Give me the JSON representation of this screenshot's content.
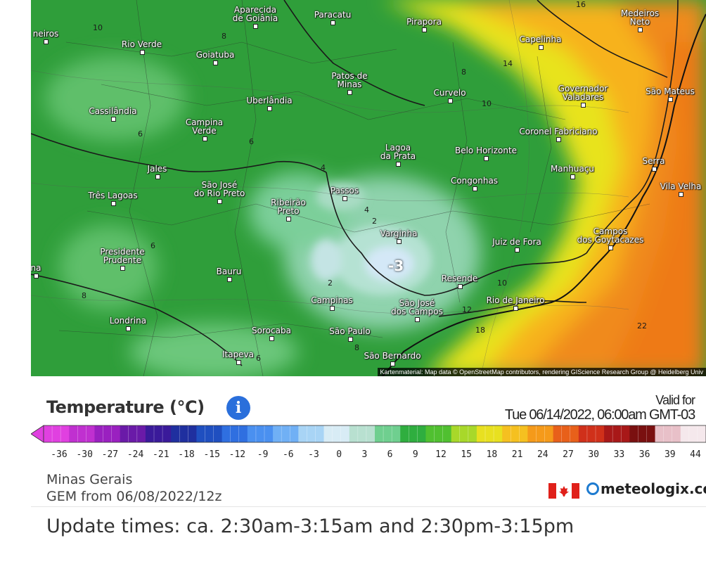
{
  "map": {
    "attribution": "Kartenmaterial: Map data © OpenStreetMap contributors, rendering GIScience Research Group @ Heidelberg Univ",
    "cold_spot_value": "-3",
    "colors": {
      "ocean_warm": "#f07d1a",
      "coast_warm": "#f7b21a",
      "yellow": "#e8e31c",
      "land_green": "#2f9e3a",
      "light_green": "#61c16a",
      "pale": "#a9dcc4",
      "cold": "#cfe6f7"
    },
    "cities": [
      {
        "name": "Aparecida\nde Goiânia"
      },
      {
        "name": "Paracatu"
      },
      {
        "name": "Pirapora"
      },
      {
        "name": "Medeiros\nNeto"
      },
      {
        "name": "neiros"
      },
      {
        "name": "Rio Verde"
      },
      {
        "name": "Goiatuba"
      },
      {
        "name": "Capelinha"
      },
      {
        "name": "Patos de\nMinas"
      },
      {
        "name": "Governador\nValadares"
      },
      {
        "name": "São Mateus"
      },
      {
        "name": "Uberlândia"
      },
      {
        "name": "Curvelo"
      },
      {
        "name": "Cassilândia"
      },
      {
        "name": "Campina\nVerde"
      },
      {
        "name": "Coronel Fabriciano"
      },
      {
        "name": "Lagoa\nda Prata"
      },
      {
        "name": "Belo Horizonte"
      },
      {
        "name": "Serra"
      },
      {
        "name": "Jales"
      },
      {
        "name": "Manhuaçu"
      },
      {
        "name": "São José\ndo Rio Preto"
      },
      {
        "name": "Congonhas"
      },
      {
        "name": "Vila Velha"
      },
      {
        "name": "Passos"
      },
      {
        "name": "Três Lagoas"
      },
      {
        "name": "Ribeirão\nPreto"
      },
      {
        "name": "Varginha"
      },
      {
        "name": "Campos\ndos Goytacazes"
      },
      {
        "name": "Juiz de Fora"
      },
      {
        "name": "Presidente\nPrudente"
      },
      {
        "name": "na"
      },
      {
        "name": "Bauru"
      },
      {
        "name": "Resende"
      },
      {
        "name": "Campinas"
      },
      {
        "name": "Rio de Janeiro"
      },
      {
        "name": "São José\ndos Campos"
      },
      {
        "name": "Londrina"
      },
      {
        "name": "Sorocaba"
      },
      {
        "name": "São Paulo"
      },
      {
        "name": "Itapeva"
      },
      {
        "name": "São Bernardo"
      }
    ],
    "isolines": [
      {
        "label": "16"
      },
      {
        "label": "10"
      },
      {
        "label": "8"
      },
      {
        "label": "14"
      },
      {
        "label": "8"
      },
      {
        "label": "10"
      },
      {
        "label": "6"
      },
      {
        "label": "6"
      },
      {
        "label": "4"
      },
      {
        "label": "4"
      },
      {
        "label": "2"
      },
      {
        "label": "6"
      },
      {
        "label": "2"
      },
      {
        "label": "8"
      },
      {
        "label": "10"
      },
      {
        "label": "12"
      },
      {
        "label": "18"
      },
      {
        "label": "22"
      },
      {
        "label": "8"
      },
      {
        "label": "6"
      }
    ]
  },
  "legend": {
    "title": "Temperature (°C)",
    "info_icon": "info-icon",
    "valid_for_label": "Valid for",
    "valid_date": "Tue 06/14/2022, 06:00am GMT-03",
    "ticks": [
      "-36",
      "-30",
      "-27",
      "-24",
      "-21",
      "-18",
      "-15",
      "-12",
      "-9",
      "-6",
      "-3",
      "0",
      "3",
      "6",
      "9",
      "12",
      "15",
      "18",
      "21",
      "24",
      "27",
      "30",
      "33",
      "36",
      "39",
      "44"
    ],
    "scale_colors": [
      "#e040e0",
      "#c030d0",
      "#9a20c0",
      "#6a1aa8",
      "#3a1a9a",
      "#1f2f9f",
      "#1f4fc0",
      "#2f6fe0",
      "#4a90f0",
      "#70b0f5",
      "#a8d4f5",
      "#d8ecf5",
      "#b8e0d0",
      "#6fcf8f",
      "#2fae3f",
      "#50c030",
      "#a8d82a",
      "#e8e020",
      "#f5c020",
      "#f59a1a",
      "#e8601a",
      "#d0301a",
      "#a81818",
      "#7a1010",
      "#e8c0c8",
      "#f5e8ec"
    ],
    "region": "Minas Gerais",
    "model": "GEM from 06/08/2022/12z",
    "brand": "meteologix.co",
    "flag_icon": "canada-flag-icon"
  },
  "footer": {
    "update_times": "Update times: ca. 2:30am-3:15am and 2:30pm-3:15pm"
  }
}
